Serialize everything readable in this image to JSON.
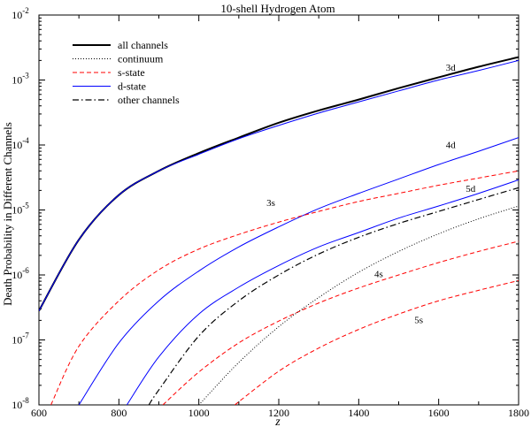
{
  "chart_data": {
    "type": "line",
    "title": "10-shell Hydrogen Atom",
    "xlabel": "z",
    "ylabel": "Death Probability in Different Channels",
    "xlim": [
      600,
      1800
    ],
    "ylim": [
      1e-08,
      0.01
    ],
    "yscale": "log",
    "x_ticks": [
      600,
      800,
      1000,
      1200,
      1400,
      1600,
      1800
    ],
    "x_tick_labels": [
      "600",
      "800",
      "1000",
      "1200",
      "1400",
      "1600",
      "1800"
    ],
    "y_ticks": [
      1e-08,
      1e-07,
      1e-06,
      1e-05,
      0.0001,
      0.001,
      0.01
    ],
    "y_tick_mantissa": "10",
    "y_tick_exponents": [
      "-8",
      "-7",
      "-6",
      "-5",
      "-4",
      "-3",
      "-2"
    ],
    "grid": false,
    "legend_position": "top-left",
    "legend": [
      {
        "label": "all channels",
        "color": "#000000",
        "style": "solid-thick"
      },
      {
        "label": "continuum",
        "color": "#000000",
        "style": "dotted"
      },
      {
        "label": "s-state",
        "color": "#ff0000",
        "style": "dashed"
      },
      {
        "label": "d-state",
        "color": "#0000ff",
        "style": "solid"
      },
      {
        "label": "other channels",
        "color": "#000000",
        "style": "dashdot"
      }
    ],
    "series": [
      {
        "name": "all channels",
        "kind": "all",
        "color": "#000000",
        "x": [
          600,
          700,
          800,
          900,
          1000,
          1100,
          1200,
          1300,
          1400,
          1500,
          1600,
          1700,
          1800
        ],
        "y": [
          2.8e-07,
          3.5e-06,
          1.7e-05,
          4e-05,
          7.5e-05,
          0.00013,
          0.00022,
          0.00034,
          0.0005,
          0.00075,
          0.0011,
          0.0016,
          0.00225
        ]
      },
      {
        "name": "3d",
        "kind": "d",
        "color": "#0000ff",
        "x": [
          600,
          700,
          800,
          900,
          1000,
          1100,
          1200,
          1300,
          1400,
          1500,
          1600,
          1700,
          1800
        ],
        "y": [
          2.8e-07,
          3.5e-06,
          1.7e-05,
          4e-05,
          7.2e-05,
          0.000125,
          0.0002,
          0.00031,
          0.00046,
          0.00068,
          0.001,
          0.0014,
          0.002
        ]
      },
      {
        "name": "4d",
        "kind": "d",
        "color": "#0000ff",
        "x": [
          700,
          800,
          900,
          1000,
          1100,
          1200,
          1300,
          1400,
          1500,
          1600,
          1700,
          1800
        ],
        "y": [
          1e-08,
          9e-08,
          4e-07,
          1.15e-06,
          2.7e-06,
          5.5e-06,
          1.05e-05,
          1.8e-05,
          3e-05,
          5e-05,
          8e-05,
          0.00013
        ]
      },
      {
        "name": "5d",
        "kind": "d",
        "color": "#0000ff",
        "x": [
          820,
          900,
          1000,
          1100,
          1200,
          1300,
          1400,
          1500,
          1600,
          1700,
          1800
        ],
        "y": [
          1e-08,
          5.5e-08,
          2.5e-07,
          6.5e-07,
          1.4e-06,
          2.7e-06,
          4.5e-06,
          7.5e-06,
          1.15e-05,
          1.8e-05,
          2.9e-05
        ]
      },
      {
        "name": "3s",
        "kind": "s",
        "color": "#ff0000",
        "x": [
          630,
          700,
          800,
          900,
          1000,
          1100,
          1200,
          1300,
          1400,
          1500,
          1600,
          1700,
          1800
        ],
        "y": [
          1e-08,
          8e-08,
          4e-07,
          1.2e-06,
          2.5e-06,
          4.2e-06,
          6.5e-06,
          9.5e-06,
          1.35e-05,
          1.8e-05,
          2.4e-05,
          3.1e-05,
          4e-05
        ]
      },
      {
        "name": "4s",
        "kind": "s",
        "color": "#ff0000",
        "x": [
          910,
          1000,
          1100,
          1200,
          1300,
          1400,
          1500,
          1600,
          1700,
          1800
        ],
        "y": [
          1e-08,
          3.2e-08,
          9e-08,
          1.95e-07,
          3.7e-07,
          6.3e-07,
          1e-06,
          1.55e-06,
          2.3e-06,
          3.3e-06
        ]
      },
      {
        "name": "5s",
        "kind": "s",
        "color": "#ff0000",
        "x": [
          1090,
          1200,
          1300,
          1400,
          1500,
          1600,
          1700,
          1800
        ],
        "y": [
          1e-08,
          3.3e-08,
          7.5e-08,
          1.45e-07,
          2.5e-07,
          4e-07,
          5.8e-07,
          8.2e-07
        ]
      },
      {
        "name": "continuum",
        "kind": "continuum",
        "color": "#000000",
        "x": [
          1000,
          1100,
          1200,
          1300,
          1400,
          1500,
          1600,
          1700,
          1800
        ],
        "y": [
          1e-08,
          4.5e-08,
          1.6e-07,
          4.5e-07,
          1.1e-06,
          2.3e-06,
          4.3e-06,
          7.3e-06,
          1.15e-05
        ]
      },
      {
        "name": "other channels",
        "kind": "other",
        "color": "#000000",
        "x": [
          875,
          900,
          1000,
          1100,
          1200,
          1300,
          1400,
          1500,
          1600,
          1700,
          1800
        ],
        "y": [
          1e-08,
          1.7e-08,
          1.15e-07,
          4e-07,
          1e-06,
          2.1e-06,
          3.8e-06,
          6.2e-06,
          9.5e-06,
          1.45e-05,
          2.2e-05
        ]
      }
    ],
    "annotations": [
      {
        "text": "3d",
        "x": 1630,
        "y": 0.0014
      },
      {
        "text": "4d",
        "x": 1630,
        "y": 9e-05
      },
      {
        "text": "5d",
        "x": 1680,
        "y": 1.9e-05
      },
      {
        "text": "3s",
        "x": 1180,
        "y": 1.15e-05
      },
      {
        "text": "4s",
        "x": 1450,
        "y": 9.2e-07
      },
      {
        "text": "5s",
        "x": 1550,
        "y": 1.8e-07
      }
    ]
  }
}
